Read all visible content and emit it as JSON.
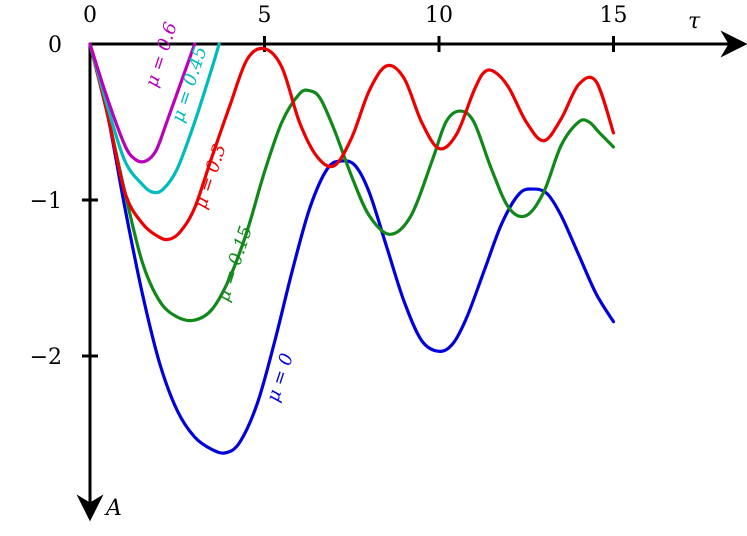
{
  "chart_data": {
    "type": "line",
    "title": "",
    "xlabel": "τ",
    "ylabel": "A",
    "xlim": [
      0,
      16.5
    ],
    "ylim": [
      -2.8,
      0.1
    ],
    "x_ticks": [
      {
        "value": 0,
        "label": "0"
      },
      {
        "value": 5,
        "label": "5"
      },
      {
        "value": 10,
        "label": "10"
      },
      {
        "value": 15,
        "label": "15"
      }
    ],
    "y_ticks": [
      {
        "value": 0,
        "label": "0"
      },
      {
        "value": -1,
        "label": "−1"
      },
      {
        "value": -2,
        "label": "−2"
      }
    ],
    "grid": false,
    "legend": "none",
    "series": [
      {
        "name": "μ = 0",
        "color": "#0000dd",
        "label_pos": {
          "x": 5.6,
          "y": -2.15
        },
        "x": [
          0,
          0.5,
          1,
          1.5,
          2,
          2.5,
          3,
          3.5,
          3.9,
          4.3,
          4.8,
          5.3,
          5.8,
          6.3,
          6.8,
          7.2,
          7.6,
          8.0,
          8.5,
          9.0,
          9.5,
          10.0,
          10.4,
          10.8,
          11.3,
          11.8,
          12.3,
          12.7,
          13.1,
          13.5,
          14.0,
          14.5,
          15.0
        ],
        "y": [
          0,
          -0.45,
          -1.05,
          -1.6,
          -2.05,
          -2.35,
          -2.52,
          -2.6,
          -2.62,
          -2.55,
          -2.3,
          -1.9,
          -1.45,
          -1.05,
          -0.8,
          -0.75,
          -0.78,
          -0.95,
          -1.3,
          -1.65,
          -1.9,
          -1.97,
          -1.92,
          -1.75,
          -1.45,
          -1.15,
          -0.96,
          -0.93,
          -0.96,
          -1.1,
          -1.35,
          -1.6,
          -1.78
        ]
      },
      {
        "name": "μ = 0.15",
        "color": "#11881a",
        "label_pos": {
          "x": 4.3,
          "y": -1.42
        },
        "x": [
          0,
          0.5,
          1,
          1.5,
          2,
          2.5,
          3,
          3.5,
          4,
          4.5,
          5,
          5.5,
          6,
          6.3,
          6.6,
          7.0,
          7.5,
          8.0,
          8.6,
          9.2,
          9.8,
          10.2,
          10.6,
          11.0,
          11.5,
          12.0,
          12.5,
          13.0,
          13.5,
          14.0,
          14.3,
          14.6,
          15.0
        ],
        "y": [
          0,
          -0.45,
          -0.95,
          -1.4,
          -1.65,
          -1.75,
          -1.77,
          -1.7,
          -1.5,
          -1.2,
          -0.82,
          -0.5,
          -0.32,
          -0.3,
          -0.35,
          -0.55,
          -0.85,
          -1.1,
          -1.22,
          -1.1,
          -0.75,
          -0.5,
          -0.43,
          -0.5,
          -0.8,
          -1.05,
          -1.1,
          -0.95,
          -0.65,
          -0.5,
          -0.5,
          -0.57,
          -0.66
        ]
      },
      {
        "name": "μ = 0.3",
        "color": "#ee0000",
        "label_pos": {
          "x": 3.6,
          "y": -0.86
        },
        "x": [
          0,
          0.5,
          1,
          1.5,
          2,
          2.3,
          2.6,
          3.0,
          3.5,
          4.0,
          4.5,
          5.0,
          5.5,
          6.0,
          6.5,
          7.0,
          7.5,
          8.0,
          8.5,
          9.0,
          9.5,
          10.0,
          10.5,
          11.0,
          11.3,
          11.6,
          12.0,
          12.5,
          13.0,
          13.5,
          14.0,
          14.5,
          15.0
        ],
        "y": [
          0,
          -0.45,
          -0.95,
          -1.15,
          -1.24,
          -1.25,
          -1.2,
          -1.05,
          -0.72,
          -0.4,
          -0.1,
          -0.03,
          -0.15,
          -0.5,
          -0.72,
          -0.78,
          -0.6,
          -0.3,
          -0.14,
          -0.22,
          -0.5,
          -0.67,
          -0.58,
          -0.3,
          -0.18,
          -0.18,
          -0.28,
          -0.5,
          -0.62,
          -0.48,
          -0.26,
          -0.24,
          -0.57
        ]
      },
      {
        "name": "μ = 0.45",
        "color": "#00bbbb",
        "label_pos": {
          "x": 3.0,
          "y": -0.27
        },
        "x": [
          0,
          0.5,
          1,
          1.5,
          1.8,
          2.1,
          2.5,
          3.0,
          3.5,
          3.7
        ],
        "y": [
          0,
          -0.4,
          -0.75,
          -0.9,
          -0.95,
          -0.93,
          -0.8,
          -0.5,
          -0.15,
          0
        ]
      },
      {
        "name": "μ = 0.6",
        "color": "#bb00bb",
        "label_pos": {
          "x": 2.2,
          "y": -0.08
        },
        "x": [
          0,
          0.5,
          1,
          1.3,
          1.6,
          1.9,
          2.2,
          2.6,
          3.0
        ],
        "y": [
          0,
          -0.35,
          -0.65,
          -0.74,
          -0.75,
          -0.68,
          -0.5,
          -0.25,
          0
        ]
      }
    ]
  }
}
